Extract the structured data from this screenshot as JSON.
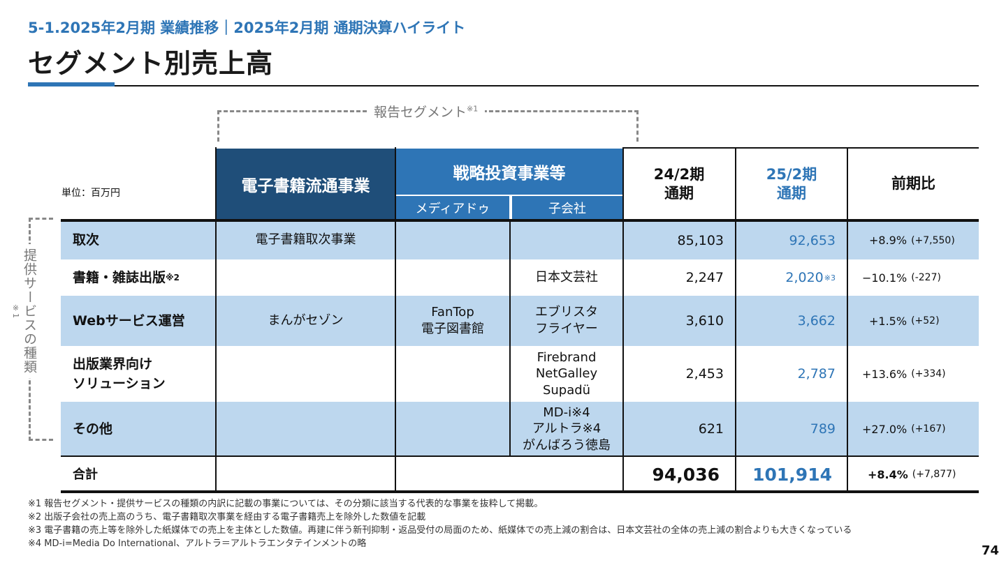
{
  "header": {
    "breadcrumb": "5-1.2025年2月期 業績推移｜2025年2月期 通期決算ハイライト",
    "title": "セグメント別売上高"
  },
  "brackets": {
    "segment_label": "報告セグメント",
    "segment_note": "※1",
    "service_label": "提供サービスの種類",
    "service_note": "※1"
  },
  "table": {
    "unit": "単位：百万円",
    "headers": {
      "ebook_distribution": "電子書籍流通事業",
      "strategic": "戦略投資事業等",
      "mediado": "メディアドゥ",
      "subsidiary": "子会社",
      "prev_period": "24/2期\n通期",
      "curr_period": "25/2期\n通期",
      "yoy": "前期比"
    },
    "rows": [
      {
        "label": "取次",
        "note": "",
        "ebook": "電子書籍取次事業",
        "mediado": "",
        "subsidiary": "",
        "prev": "85,103",
        "curr": "92,653",
        "curr_note": "",
        "yoy_pct": "+8.9%",
        "yoy_abs": "(+7,550)"
      },
      {
        "label": "書籍・雑誌出版",
        "note": "※2",
        "ebook": "",
        "mediado": "",
        "subsidiary": "日本文芸社",
        "prev": "2,247",
        "curr": "2,020",
        "curr_note": "※3",
        "yoy_pct": "−10.1%",
        "yoy_abs": "(-227)"
      },
      {
        "label": "Webサービス運営",
        "note": "",
        "ebook": "まんがセゾン",
        "mediado": "FanTop\n電子図書館",
        "subsidiary": "エブリスタ\nフライヤー",
        "prev": "3,610",
        "curr": "3,662",
        "curr_note": "",
        "yoy_pct": "+1.5%",
        "yoy_abs": "(+52)"
      },
      {
        "label": "出版業界向け\nソリューション",
        "note": "",
        "ebook": "",
        "mediado": "",
        "subsidiary": "Firebrand\nNetGalley\nSupadü",
        "prev": "2,453",
        "curr": "2,787",
        "curr_note": "",
        "yoy_pct": "+13.6%",
        "yoy_abs": "(+334)"
      },
      {
        "label": "その他",
        "note": "",
        "ebook": "",
        "mediado": "",
        "subsidiary": "MD-i※4\nアルトラ※4\nがんばろう徳島",
        "prev": "621",
        "curr": "789",
        "curr_note": "",
        "yoy_pct": "+27.0%",
        "yoy_abs": "(+167)"
      }
    ],
    "total": {
      "label": "合計",
      "prev": "94,036",
      "curr": "101,914",
      "yoy_pct": "+8.4%",
      "yoy_abs": "(+7,877)"
    }
  },
  "footnotes": [
    "※1 報告セグメント・提供サービスの種類の内訳に記載の事業については、その分類に該当する代表的な事業を抜粋して掲載。",
    "※2 出版子会社の売上高のうち、電子書籍取次事業を経由する電子書籍売上を除外した数値を記載",
    "※3 電子書籍の売上等を除外した紙媒体での売上を主体とした数値。再建に伴う新刊抑制・返品受付の局面のため、紙媒体での売上減の割合は、日本文芸社の全体の売上減の割合よりも大きくなっている",
    "※4 MD-i=Media Do International、アルトラ＝アルトラエンタテインメントの略"
  ],
  "page_number": "74",
  "colors": {
    "accent": "#2e75b6",
    "dark_header": "#1f4e79",
    "band": "#bdd7ee"
  }
}
